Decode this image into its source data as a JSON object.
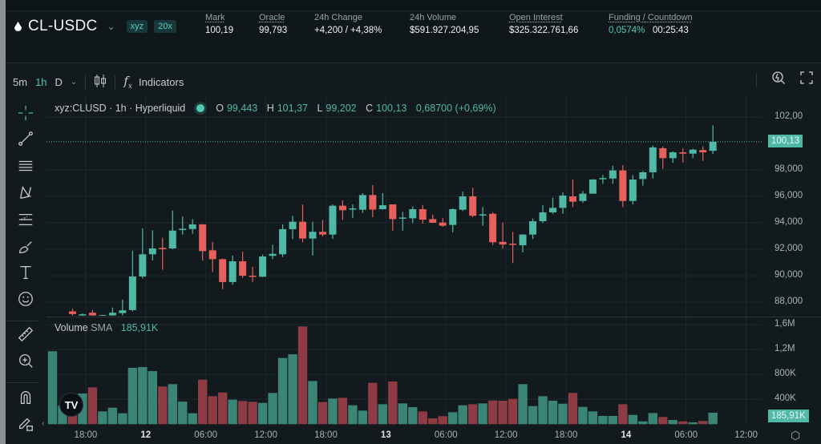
{
  "header": {
    "symbol": "CL-USDC",
    "badges": [
      "xyz",
      "20x"
    ],
    "stats": [
      {
        "label": "Mark",
        "value": "100,19",
        "green": true,
        "underline": true
      },
      {
        "label": "Oracle",
        "value": "99,793",
        "green": false,
        "underline": true
      },
      {
        "label": "24h Change",
        "value": "+4,200 / +4,38%",
        "green": true,
        "underline": false
      },
      {
        "label": "24h Volume",
        "value": "$591.927.204,95",
        "green": false,
        "underline": false
      },
      {
        "label": "Open Interest",
        "value": "$325.322.761,66",
        "green": false,
        "underline": true
      }
    ],
    "funding": {
      "label": "Funding / Countdown",
      "rate": "0,0574%",
      "countdown": "00:25:43"
    }
  },
  "toolbar": {
    "intervals": [
      "5m",
      "1h",
      "D"
    ],
    "active_interval": "1h",
    "indicators": "Indicators"
  },
  "legend": {
    "title": "xyz:CLUSD · 1h · Hyperliquid",
    "o_label": "O",
    "o": "99,443",
    "h_label": "H",
    "h": "101,37",
    "l_label": "L",
    "l": "99,202",
    "c_label": "C",
    "c": "100,13",
    "change": "0,68700 (+0,69%)"
  },
  "volume_legend": {
    "label": "Volume",
    "sma_label": "SMA",
    "sma": "185,91K"
  },
  "colors": {
    "up": "#4fb8a6",
    "down": "#e8605d",
    "vol_up": "#3b8577",
    "vol_down": "#8e3b44",
    "bg": "#121a1e"
  },
  "left_tools": [
    "crosshair-icon",
    "trend-line-icon",
    "horizontal-lines-icon",
    "pattern-icon",
    "fib-icon",
    "brush-icon",
    "text-icon",
    "emoji-icon",
    "ruler-icon",
    "zoom-in-icon",
    "magnet-icon",
    "lock-drawing-icon"
  ],
  "chart_data": {
    "type": "candlestick",
    "interval": "1h",
    "price_ticks": [
      {
        "v": 102,
        "t": "102,00"
      },
      {
        "v": 98,
        "t": "98,000"
      },
      {
        "v": 96,
        "t": "96,000"
      },
      {
        "v": 94,
        "t": "94,000"
      },
      {
        "v": 92,
        "t": "92,000"
      },
      {
        "v": 90,
        "t": "90,000"
      },
      {
        "v": 88,
        "t": "88,000"
      }
    ],
    "last_price": {
      "v": 100.13,
      "t": "100,13"
    },
    "volume_ticks": [
      {
        "v": 1600,
        "t": "1,6M"
      },
      {
        "v": 1200,
        "t": "1,2M"
      },
      {
        "v": 800,
        "t": "800K"
      },
      {
        "v": 400,
        "t": "400K"
      }
    ],
    "volume_sma": {
      "v": 185.91,
      "t": "185,91K"
    },
    "x_ticks": [
      "18:00",
      "12",
      "06:00",
      "12:00",
      "18:00",
      "13",
      "06:00",
      "12:00",
      "18:00",
      "14",
      "06:00",
      "12:00"
    ],
    "ohlc": [
      [
        86.6,
        86.8,
        86.5,
        86.7
      ],
      [
        86.6,
        86.9,
        86.5,
        86.8
      ],
      [
        87.3,
        87.5,
        86.9,
        87.1
      ],
      [
        87.05,
        87.15,
        86.95,
        87.08
      ],
      [
        87.2,
        87.4,
        86.95,
        87.0
      ],
      [
        87.0,
        87.05,
        86.95,
        87.02
      ],
      [
        87.0,
        87.6,
        86.9,
        87.2
      ],
      [
        87.17,
        88.2,
        87.0,
        87.38
      ],
      [
        87.4,
        91.9,
        87.3,
        89.94
      ],
      [
        89.94,
        93.58,
        89.8,
        91.62
      ],
      [
        91.62,
        93.44,
        91.15,
        92.06
      ],
      [
        92.1,
        92.87,
        90.45,
        92.0
      ],
      [
        92.06,
        94.93,
        92.0,
        93.41
      ],
      [
        93.45,
        94.48,
        93.1,
        93.55
      ],
      [
        93.53,
        94.28,
        93.17,
        93.88
      ],
      [
        93.88,
        93.9,
        91.15,
        91.86
      ],
      [
        91.92,
        92.56,
        90.28,
        91.25
      ],
      [
        91.25,
        91.3,
        88.99,
        89.52
      ],
      [
        89.52,
        91.52,
        89.31,
        91.09
      ],
      [
        91.09,
        91.82,
        89.84,
        90.0
      ],
      [
        90.0,
        90.68,
        89.53,
        89.96
      ],
      [
        89.92,
        91.6,
        89.9,
        91.45
      ],
      [
        91.5,
        92.34,
        91.25,
        91.65
      ],
      [
        91.62,
        93.88,
        91.41,
        93.52
      ],
      [
        93.52,
        94.53,
        92.77,
        94.08
      ],
      [
        94.08,
        95.39,
        92.53,
        92.81
      ],
      [
        92.81,
        94.08,
        91.52,
        93.32
      ],
      [
        93.32,
        94.22,
        92.97,
        93.11
      ],
      [
        93.11,
        95.39,
        92.77,
        95.29
      ],
      [
        95.29,
        95.7,
        94.22,
        94.95
      ],
      [
        95.05,
        95.39,
        94.38,
        95.09
      ],
      [
        94.99,
        96.24,
        94.75,
        96.1
      ],
      [
        96.1,
        96.85,
        94.42,
        95.0
      ],
      [
        95.03,
        96.24,
        95.0,
        95.33
      ],
      [
        95.39,
        95.4,
        93.41,
        94.28
      ],
      [
        94.34,
        94.83,
        93.41,
        94.4
      ],
      [
        94.34,
        95.23,
        93.98,
        95.03
      ],
      [
        95.03,
        95.35,
        93.94,
        94.24
      ],
      [
        94.28,
        94.62,
        93.98,
        94.0
      ],
      [
        94.02,
        94.38,
        93.7,
        93.78
      ],
      [
        93.84,
        95.1,
        93.27,
        95.03
      ],
      [
        94.99,
        96.36,
        94.89,
        96.0
      ],
      [
        96.0,
        96.65,
        94.42,
        94.53
      ],
      [
        94.58,
        95.19,
        93.78,
        94.64
      ],
      [
        94.68,
        94.8,
        92.32,
        92.53
      ],
      [
        92.56,
        94.02,
        92.06,
        92.36
      ],
      [
        92.42,
        93.31,
        90.95,
        92.38
      ],
      [
        92.3,
        93.15,
        91.76,
        93.11
      ],
      [
        93.11,
        94.32,
        92.77,
        94.12
      ],
      [
        94.12,
        95.33,
        93.98,
        94.79
      ],
      [
        94.79,
        95.9,
        94.68,
        95.13
      ],
      [
        95.13,
        96.3,
        94.68,
        96.06
      ],
      [
        96.0,
        97.27,
        95.19,
        95.6
      ],
      [
        95.65,
        96.4,
        95.5,
        96.2
      ],
      [
        96.2,
        97.3,
        96.2,
        97.27
      ],
      [
        97.3,
        97.61,
        96.95,
        97.38
      ],
      [
        97.35,
        98.32,
        96.95,
        97.96
      ],
      [
        97.96,
        98.36,
        95.19,
        95.65
      ],
      [
        95.65,
        97.61,
        95.39,
        97.27
      ],
      [
        97.31,
        97.92,
        96.81,
        97.82
      ],
      [
        97.82,
        99.84,
        97.35,
        99.7
      ],
      [
        99.64,
        99.78,
        98.08,
        98.89
      ],
      [
        98.89,
        99.4,
        98.53,
        99.33
      ],
      [
        99.33,
        99.64,
        98.56,
        99.23
      ],
      [
        99.23,
        99.6,
        98.89,
        99.53
      ],
      [
        99.5,
        99.78,
        98.68,
        99.33
      ],
      [
        99.443,
        101.37,
        99.202,
        100.13
      ]
    ],
    "volume_k": [
      1174,
      300,
      180,
      494,
      593,
      206,
      266,
      176,
      907,
      920,
      855,
      606,
      645,
      365,
      176,
      717,
      451,
      511,
      395,
      374,
      361,
      343,
      503,
      1066,
      1126,
      1574,
      696,
      357,
      413,
      425,
      305,
      219,
      666,
      322,
      688,
      335,
      275,
      206,
      94,
      129,
      193,
      305,
      322,
      335,
      382,
      378,
      408,
      645,
      292,
      451,
      378,
      330,
      503,
      279,
      206,
      133,
      133,
      322,
      150,
      46,
      180,
      116,
      68,
      46,
      30,
      52,
      185
    ]
  }
}
